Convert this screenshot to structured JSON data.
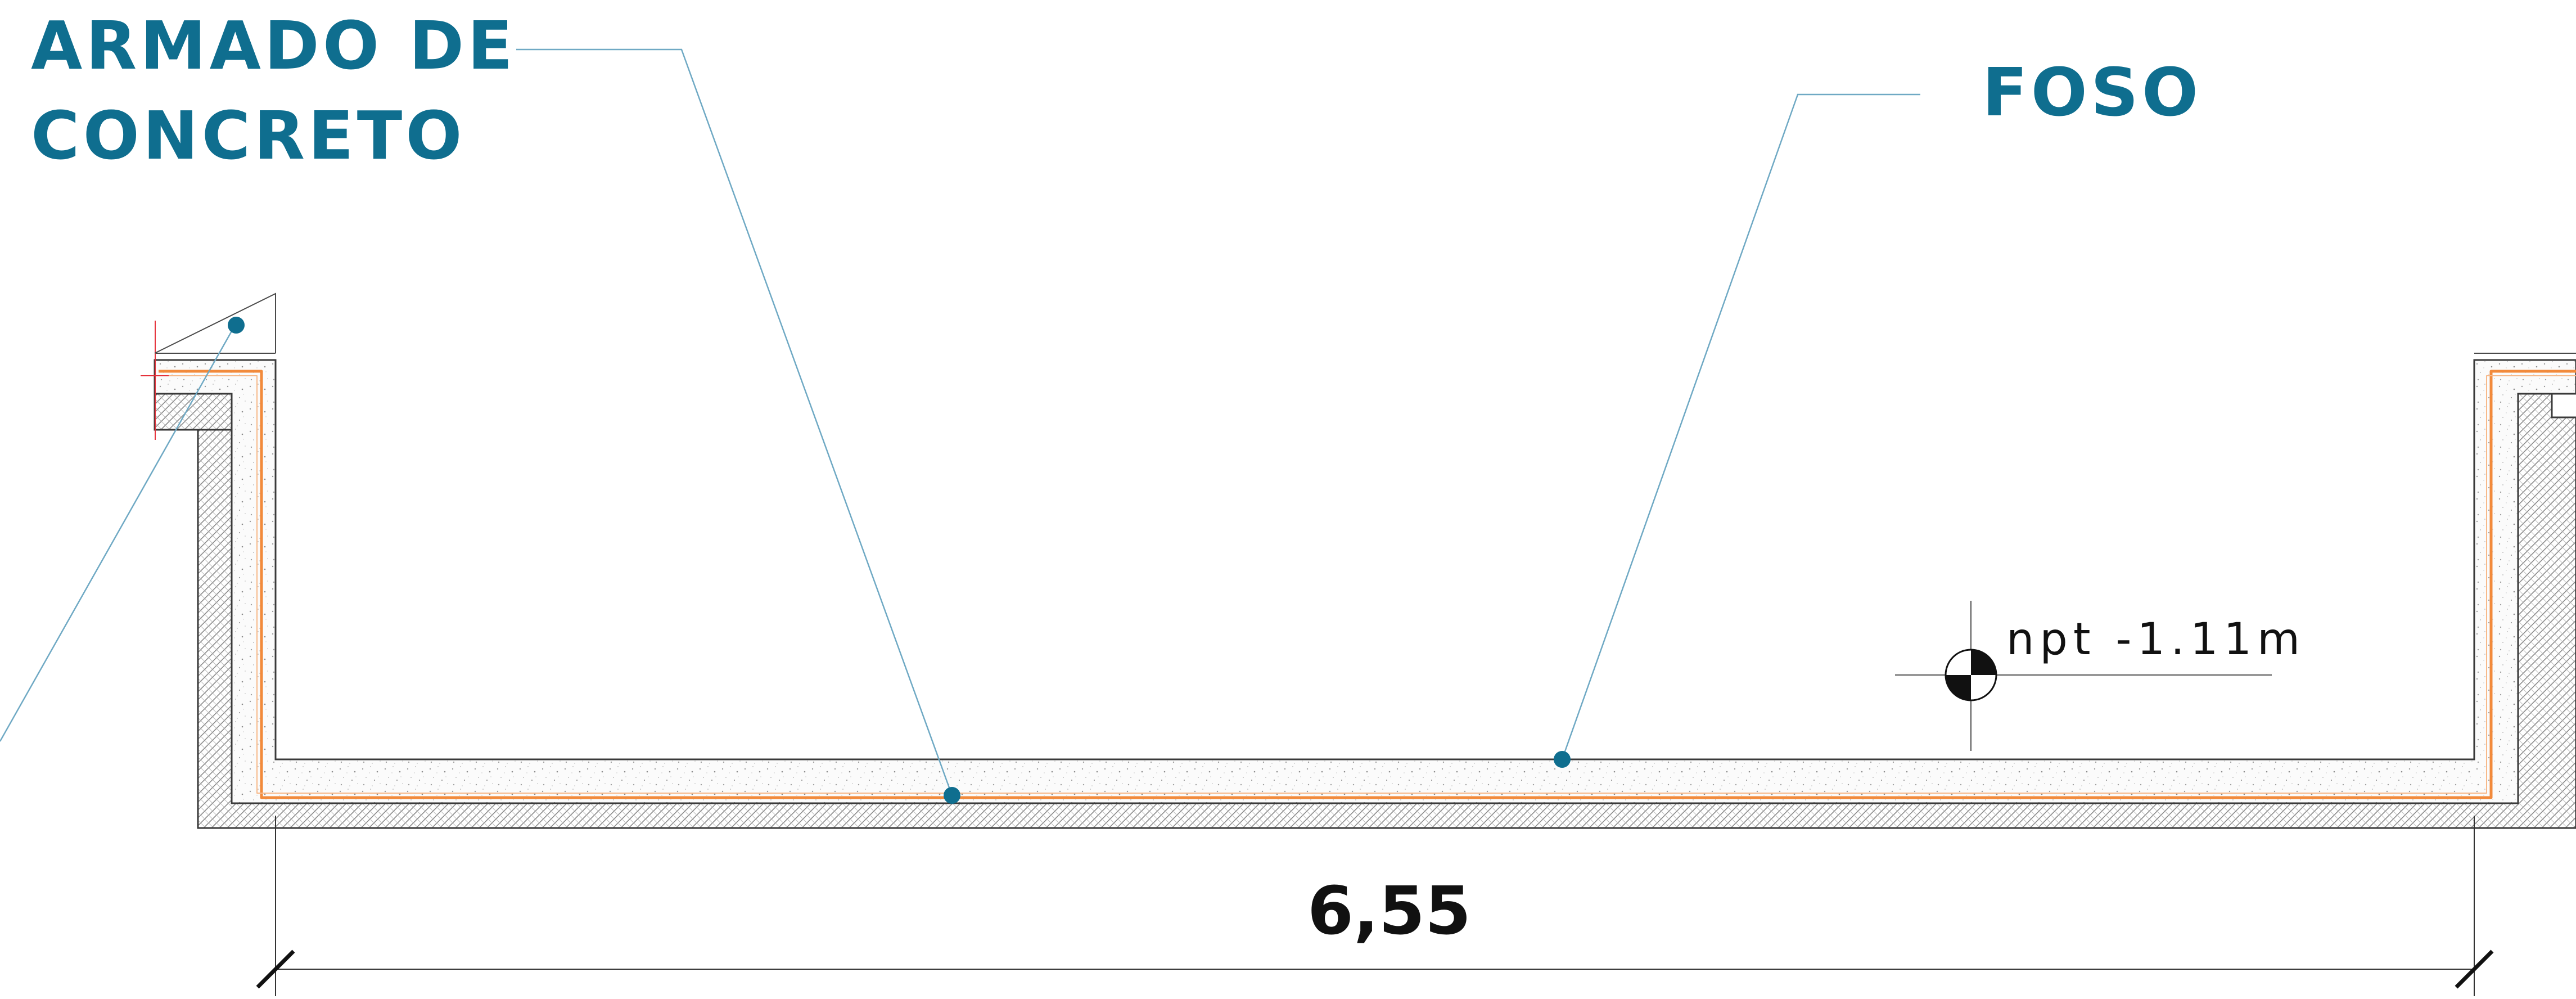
{
  "labels": {
    "armado_line1": "ARMADO DE",
    "armado_line2": "CONCRETO",
    "foso": "FOSO",
    "level": "npt -1.11m",
    "dimension": "6,55"
  },
  "colors": {
    "label": "#0f6e8f",
    "leader": "#6fa9c4",
    "rebar": "#f28a3b",
    "outline": "#3a3a3a",
    "concrete_fill": "#f4f4f4",
    "hatch": "#7a7a7a",
    "red_mark": "#e5323b"
  },
  "icons": {
    "level_marker": "level-datum-icon",
    "leader_dot": "leader-dot-icon"
  }
}
